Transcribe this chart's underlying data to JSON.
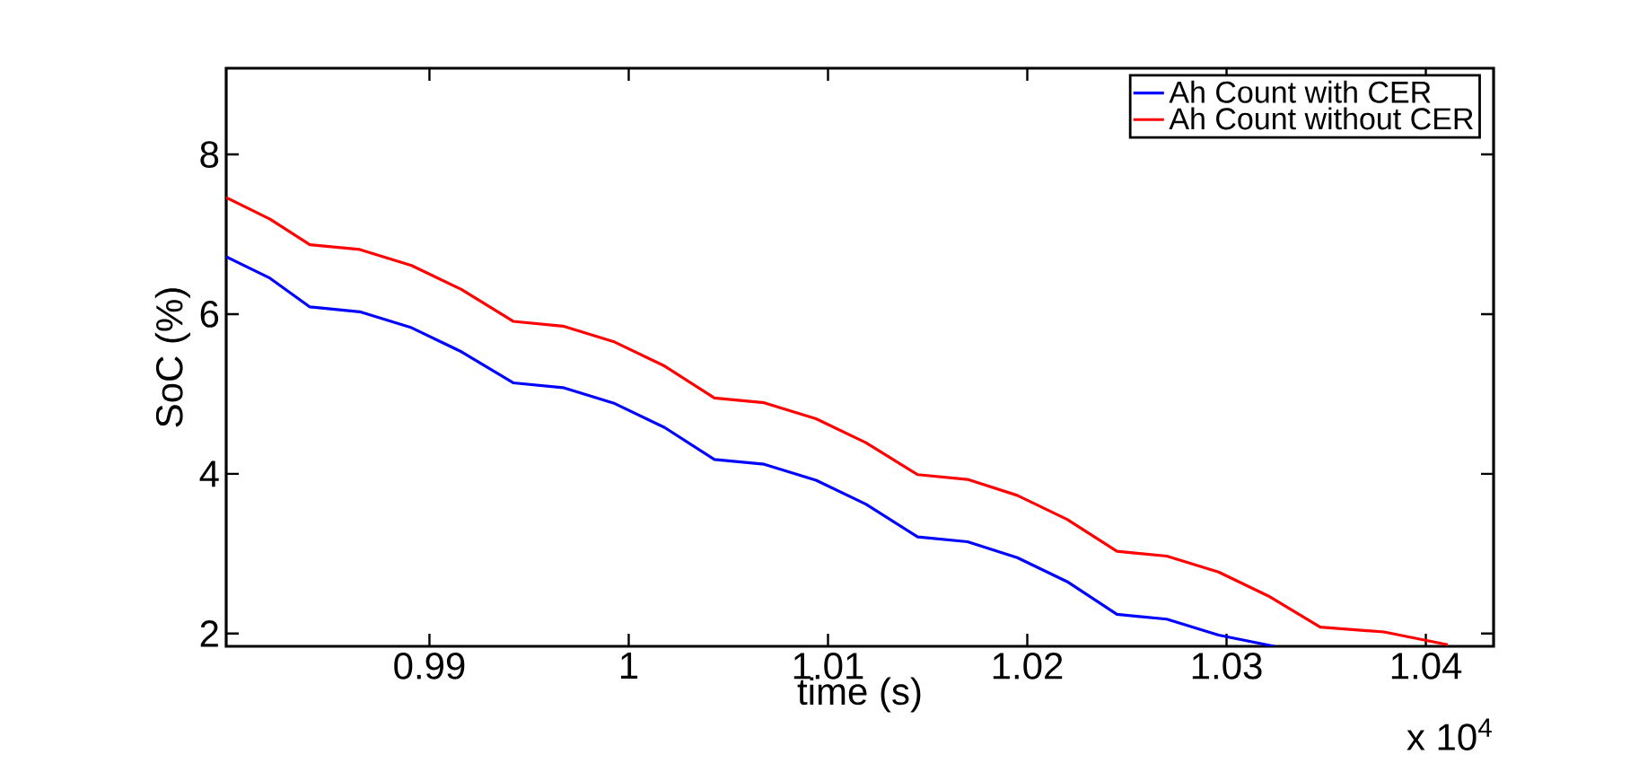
{
  "chart_data": {
    "type": "line",
    "xlabel": "time (s)",
    "ylabel": "SoC (%)",
    "annotations": [
      "x 10$^{4}$"
    ],
    "xlim": [
      0.9798,
      1.0434
    ],
    "ylim": [
      1.84,
      9.08
    ],
    "xticks": [
      0.99,
      1,
      1.01,
      1.02,
      1.03,
      1.04
    ],
    "yticks": [
      2,
      4,
      6,
      8
    ],
    "grid": false,
    "legend": "top right",
    "marker": "none",
    "line_style": "solid",
    "series": [
      {
        "name": "Ah Count with CER",
        "color": "#0000ff",
        "x": [
          0.9798,
          0.982,
          0.984,
          0.9865,
          0.9891,
          0.9916,
          0.9942,
          0.9967,
          0.9993,
          1.0018,
          1.0043,
          1.0068,
          1.0094,
          1.0119,
          1.0145,
          1.017,
          1.0195,
          1.022,
          1.0245,
          1.027,
          1.0296,
          1.0324
        ],
        "values": [
          6.72,
          6.45,
          6.09,
          6.03,
          5.83,
          5.53,
          5.14,
          5.08,
          4.88,
          4.58,
          4.18,
          4.12,
          3.92,
          3.62,
          3.21,
          3.15,
          2.95,
          2.65,
          2.24,
          2.18,
          1.98,
          1.84
        ]
      },
      {
        "name": "Ah Count without CER",
        "color": "#ff0000",
        "x": [
          0.9798,
          0.982,
          0.984,
          0.9865,
          0.9891,
          0.9916,
          0.9942,
          0.9967,
          0.9993,
          1.0018,
          1.0043,
          1.0068,
          1.0094,
          1.0119,
          1.0145,
          1.017,
          1.0195,
          1.022,
          1.0245,
          1.027,
          1.0296,
          1.0321,
          1.0347,
          1.0379,
          1.0411
        ],
        "values": [
          7.46,
          7.19,
          6.87,
          6.81,
          6.61,
          6.31,
          5.91,
          5.85,
          5.65,
          5.35,
          4.95,
          4.89,
          4.69,
          4.39,
          3.99,
          3.93,
          3.73,
          3.43,
          3.03,
          2.97,
          2.77,
          2.47,
          2.08,
          2.02,
          1.86
        ]
      }
    ]
  }
}
